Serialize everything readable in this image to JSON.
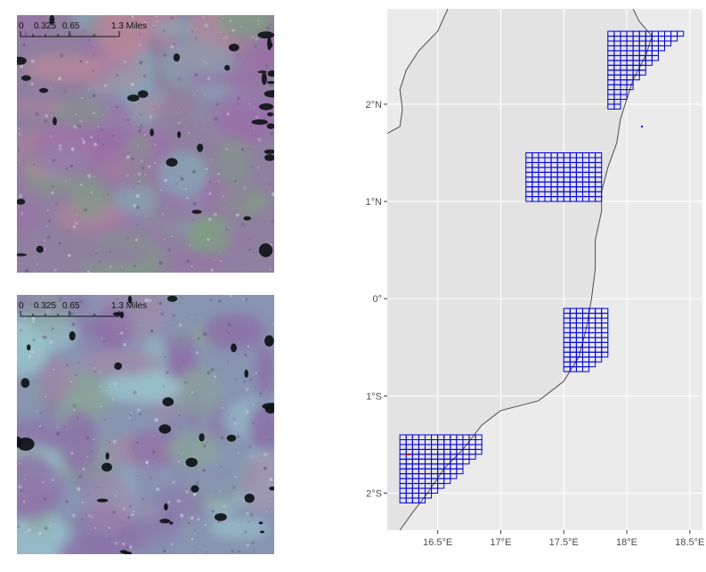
{
  "satellite_panels": [
    {
      "scale_bar": {
        "labels": [
          "0",
          "0.325",
          "0.65",
          "1.3 Miles"
        ],
        "values": [
          0,
          0.325,
          0.65,
          1.3
        ]
      },
      "palette": {
        "base": "#8f7fa0",
        "violet": "#9a6fa8",
        "pink": "#b4869a",
        "green": "#7f9f82",
        "cyan": "#86a8b6",
        "water": "#101418"
      }
    },
    {
      "scale_bar": {
        "labels": [
          "0",
          "0.325",
          "0.65",
          "1.3 Miles"
        ],
        "values": [
          0,
          0.325,
          0.65,
          1.3
        ]
      },
      "palette": {
        "base": "#8894b0",
        "violet": "#8c6fa8",
        "pink": "#a188a8",
        "green": "#8aa49a",
        "cyan": "#98c4cc",
        "water": "#0d1115"
      }
    }
  ],
  "map": {
    "x_range": [
      16.1,
      18.6
    ],
    "y_range": [
      -2.38,
      2.98
    ],
    "x_ticks": [
      16.5,
      17,
      17.5,
      18,
      18.5
    ],
    "x_tick_labels": [
      "16.5°E",
      "17°E",
      "17.5°E",
      "18°E",
      "18.5°E"
    ],
    "y_ticks": [
      2,
      1,
      0,
      -1,
      -2
    ],
    "y_tick_labels": [
      "2°N",
      "1°N",
      "0°",
      "1°S",
      "2°S"
    ],
    "colors": {
      "panel": "#ebebeb",
      "land": "#e3e3e3",
      "grid": "#ffffff",
      "coast": "#4d4d4d",
      "cells": "#0000dd",
      "highlight": "#cc0000"
    },
    "cell_size_deg": 0.05,
    "grid_blocks": [
      {
        "name": "north",
        "lon": [
          17.85,
          18.45
        ],
        "lat": [
          1.95,
          2.75
        ],
        "row_ends": [
          18.45,
          18.4,
          18.35,
          18.3,
          18.25,
          18.25,
          18.2,
          18.15,
          18.15,
          18.1,
          18.05,
          18.05,
          18.0,
          18.0,
          17.95,
          17.95
        ]
      },
      {
        "name": "upper-middle",
        "lon": [
          17.2,
          17.8
        ],
        "lat": [
          1.0,
          1.5
        ],
        "row_ends": []
      },
      {
        "name": "lower-middle",
        "lon": [
          17.5,
          17.85
        ],
        "lat": [
          -0.75,
          -0.1
        ],
        "row_ends": [
          17.85,
          17.85,
          17.85,
          17.85,
          17.85,
          17.85,
          17.85,
          17.85,
          17.85,
          17.85,
          17.8,
          17.75,
          17.7
        ]
      },
      {
        "name": "south",
        "lon": [
          16.2,
          16.85
        ],
        "lat": [
          -2.1,
          -1.4
        ],
        "row_ends": [
          16.85,
          16.85,
          16.85,
          16.85,
          16.8,
          16.75,
          16.7,
          16.7,
          16.65,
          16.6,
          16.55,
          16.5,
          16.45,
          16.4
        ]
      }
    ],
    "highlight_cell": {
      "lon": 16.25,
      "lat": -1.6
    },
    "outlier_point": {
      "lon": 18.12,
      "lat": 1.77
    },
    "coastline": [
      {
        "lon": 18.05,
        "lat": 2.98
      },
      {
        "lon": 18.1,
        "lat": 2.85
      },
      {
        "lon": 18.2,
        "lat": 2.7
      },
      {
        "lon": 18.15,
        "lat": 2.5
      },
      {
        "lon": 18.05,
        "lat": 2.25
      },
      {
        "lon": 18.0,
        "lat": 2.05
      },
      {
        "lon": 17.95,
        "lat": 1.85
      },
      {
        "lon": 17.92,
        "lat": 1.6
      },
      {
        "lon": 17.85,
        "lat": 1.35
      },
      {
        "lon": 17.8,
        "lat": 1.1
      },
      {
        "lon": 17.8,
        "lat": 0.9
      },
      {
        "lon": 17.75,
        "lat": 0.6
      },
      {
        "lon": 17.75,
        "lat": 0.3
      },
      {
        "lon": 17.72,
        "lat": 0.0
      },
      {
        "lon": 17.68,
        "lat": -0.3
      },
      {
        "lon": 17.62,
        "lat": -0.6
      },
      {
        "lon": 17.5,
        "lat": -0.85
      },
      {
        "lon": 17.3,
        "lat": -1.05
      },
      {
        "lon": 17.0,
        "lat": -1.15
      },
      {
        "lon": 16.85,
        "lat": -1.3
      },
      {
        "lon": 16.7,
        "lat": -1.55
      },
      {
        "lon": 16.55,
        "lat": -1.75
      },
      {
        "lon": 16.42,
        "lat": -2.0
      },
      {
        "lon": 16.3,
        "lat": -2.2
      },
      {
        "lon": 16.2,
        "lat": -2.38
      }
    ],
    "western_coastline": [
      {
        "lon": 16.58,
        "lat": 2.98
      },
      {
        "lon": 16.5,
        "lat": 2.75
      },
      {
        "lon": 16.35,
        "lat": 2.55
      },
      {
        "lon": 16.25,
        "lat": 2.35
      },
      {
        "lon": 16.2,
        "lat": 2.15
      },
      {
        "lon": 16.22,
        "lat": 1.95
      },
      {
        "lon": 16.2,
        "lat": 1.77
      },
      {
        "lon": 16.1,
        "lat": 1.7
      }
    ]
  }
}
